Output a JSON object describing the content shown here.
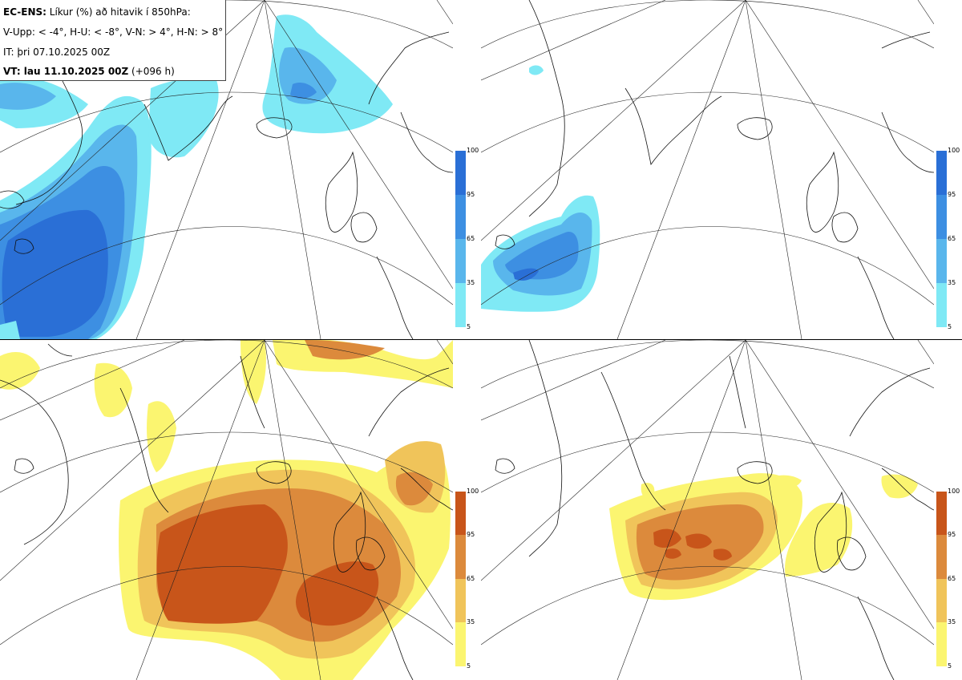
{
  "info": {
    "line1_bold": "EC-ENS:",
    "line1_rest": " Líkur (%) að hitavik í 850hPa:",
    "line2": "V-Upp: < -4°, H-U: < -8°, V-N: > 4°, H-N: > 8°",
    "line3": "IT: þri 07.10.2025 00Z",
    "line4_bold": "VT: lau 11.10.2025 00Z",
    "line4_rest": " (+096 h)"
  },
  "colorbar_cold": {
    "ticks": [
      "100",
      "95",
      "65",
      "35",
      "5"
    ],
    "colors": [
      "#2a6fd6",
      "#3d8fe2",
      "#59b6ec",
      "#7fe9f5"
    ]
  },
  "colorbar_warm": {
    "ticks": [
      "100",
      "95",
      "65",
      "35",
      "5"
    ],
    "colors": [
      "#c8551a",
      "#dc8a3c",
      "#f0c45a",
      "#fbf570"
    ]
  },
  "panels": [
    {
      "name": "V-Upp",
      "palette": "cold"
    },
    {
      "name": "H-U",
      "palette": "cold"
    },
    {
      "name": "V-N",
      "palette": "warm"
    },
    {
      "name": "H-N",
      "palette": "warm"
    }
  ]
}
